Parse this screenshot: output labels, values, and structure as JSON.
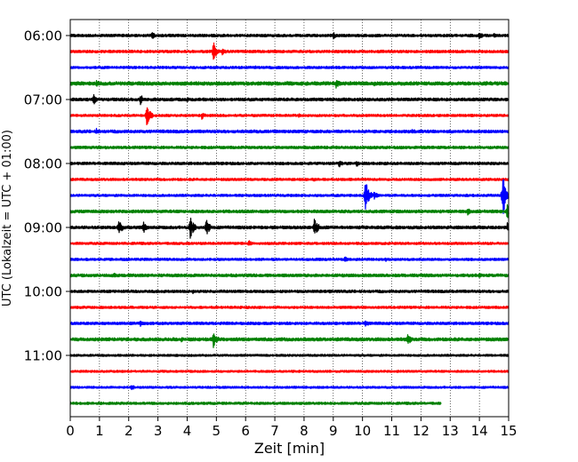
{
  "chart_data": {
    "type": "line",
    "title": "",
    "xlabel": "Zeit  [min]",
    "ylabel": "UTC (Lokalzeit = UTC + 01:00)",
    "xlim": [
      0,
      15
    ],
    "x_ticks": [
      0,
      1,
      2,
      3,
      4,
      5,
      6,
      7,
      8,
      9,
      10,
      11,
      12,
      13,
      14,
      15
    ],
    "x_tick_labels": [
      "0",
      "1",
      "2",
      "3",
      "4",
      "5",
      "6",
      "7",
      "8",
      "9",
      "10",
      "11",
      "12",
      "13",
      "14",
      "15"
    ],
    "y_ticks": [
      {
        "label": "06:00",
        "row": 0
      },
      {
        "label": "07:00",
        "row": 4
      },
      {
        "label": "08:00",
        "row": 8
      },
      {
        "label": "09:00",
        "row": 12
      },
      {
        "label": "10:00",
        "row": 16
      },
      {
        "label": "11:00",
        "row": 20
      }
    ],
    "grid": "vertical dotted",
    "colors": [
      "#000000",
      "#ff0000",
      "#0000ff",
      "#008000"
    ],
    "traces": [
      {
        "start": "06:00",
        "color": "#000000",
        "end_min": 15,
        "noise": 1.0,
        "events": [
          [
            2.8,
            5
          ],
          [
            9.0,
            4
          ],
          [
            14.0,
            4.5
          ],
          [
            14.5,
            3
          ]
        ]
      },
      {
        "start": "06:15",
        "color": "#ff0000",
        "end_min": 15,
        "noise": 1.0,
        "events": [
          [
            4.9,
            11
          ],
          [
            5.2,
            5
          ]
        ]
      },
      {
        "start": "06:30",
        "color": "#0000ff",
        "end_min": 15,
        "noise": 0.9,
        "events": [
          [
            6.3,
            2.5
          ]
        ]
      },
      {
        "start": "06:45",
        "color": "#008000",
        "end_min": 15,
        "noise": 1.3,
        "events": [
          [
            0.9,
            4
          ],
          [
            9.1,
            6
          ],
          [
            10.4,
            3
          ]
        ]
      },
      {
        "start": "07:00",
        "color": "#000000",
        "end_min": 15,
        "noise": 1.1,
        "events": [
          [
            0.8,
            6
          ],
          [
            2.4,
            6
          ],
          [
            4.0,
            3
          ]
        ]
      },
      {
        "start": "07:15",
        "color": "#ff0000",
        "end_min": 15,
        "noise": 0.9,
        "events": [
          [
            2.62,
            13
          ],
          [
            4.5,
            4.5
          ],
          [
            7.8,
            2.5
          ]
        ]
      },
      {
        "start": "07:30",
        "color": "#0000ff",
        "end_min": 15,
        "noise": 1.1,
        "events": [
          [
            0.9,
            4
          ],
          [
            11.7,
            3
          ],
          [
            14.3,
            3
          ]
        ]
      },
      {
        "start": "07:45",
        "color": "#008000",
        "end_min": 15,
        "noise": 1.0,
        "events": [
          [
            1.2,
            2.5
          ]
        ]
      },
      {
        "start": "08:00",
        "color": "#000000",
        "end_min": 15,
        "noise": 1.0,
        "events": [
          [
            9.2,
            5
          ],
          [
            9.8,
            4.5
          ]
        ]
      },
      {
        "start": "08:15",
        "color": "#ff0000",
        "end_min": 15,
        "noise": 0.9,
        "events": [
          [
            8.3,
            3
          ]
        ]
      },
      {
        "start": "08:30",
        "color": "#0000ff",
        "end_min": 15,
        "noise": 0.9,
        "events": [
          [
            10.1,
            18
          ],
          [
            10.4,
            5
          ],
          [
            14.8,
            24
          ]
        ]
      },
      {
        "start": "08:45",
        "color": "#008000",
        "end_min": 15,
        "noise": 1.1,
        "events": [
          [
            13.6,
            4
          ],
          [
            14.95,
            9
          ]
        ]
      },
      {
        "start": "09:00",
        "color": "#000000",
        "end_min": 15,
        "noise": 1.1,
        "events": [
          [
            1.65,
            10
          ],
          [
            2.5,
            7
          ],
          [
            4.1,
            14
          ],
          [
            4.65,
            10
          ],
          [
            8.35,
            12
          ],
          [
            14.95,
            6
          ]
        ]
      },
      {
        "start": "09:15",
        "color": "#ff0000",
        "end_min": 15,
        "noise": 0.9,
        "events": [
          [
            6.1,
            4
          ]
        ]
      },
      {
        "start": "09:30",
        "color": "#0000ff",
        "end_min": 15,
        "noise": 0.9,
        "events": [
          [
            9.4,
            4
          ],
          [
            10.8,
            3
          ]
        ]
      },
      {
        "start": "09:45",
        "color": "#008000",
        "end_min": 15,
        "noise": 1.1,
        "events": [
          [
            1.5,
            3
          ],
          [
            14.0,
            3
          ]
        ]
      },
      {
        "start": "10:00",
        "color": "#000000",
        "end_min": 15,
        "noise": 1.0,
        "events": [
          [
            4.2,
            3
          ],
          [
            8.9,
            3
          ]
        ]
      },
      {
        "start": "10:15",
        "color": "#ff0000",
        "end_min": 15,
        "noise": 0.9,
        "events": []
      },
      {
        "start": "10:30",
        "color": "#0000ff",
        "end_min": 15,
        "noise": 1.0,
        "events": [
          [
            2.4,
            3.5
          ],
          [
            10.1,
            5
          ]
        ]
      },
      {
        "start": "10:45",
        "color": "#008000",
        "end_min": 15,
        "noise": 1.2,
        "events": [
          [
            3.8,
            3.5
          ],
          [
            4.9,
            10
          ],
          [
            11.55,
            7
          ]
        ]
      },
      {
        "start": "11:00",
        "color": "#000000",
        "end_min": 15,
        "noise": 0.8,
        "events": []
      },
      {
        "start": "11:15",
        "color": "#ff0000",
        "end_min": 15,
        "noise": 0.8,
        "events": []
      },
      {
        "start": "11:30",
        "color": "#0000ff",
        "end_min": 15,
        "noise": 0.8,
        "events": [
          [
            2.1,
            3.5
          ]
        ]
      },
      {
        "start": "11:45",
        "color": "#008000",
        "end_min": 12.7,
        "noise": 0.9,
        "events": []
      }
    ]
  }
}
